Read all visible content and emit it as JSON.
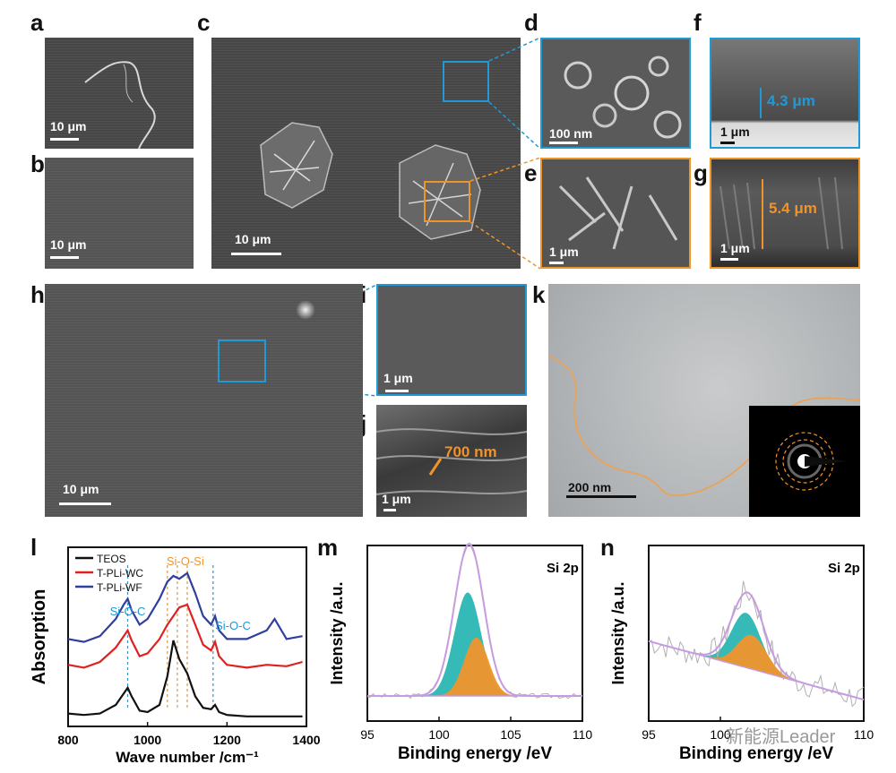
{
  "panel_labels": {
    "a": "a",
    "b": "b",
    "c": "c",
    "d": "d",
    "e": "e",
    "f": "f",
    "g": "g",
    "h": "h",
    "i": "i",
    "j": "j",
    "k": "k",
    "l": "l",
    "m": "m",
    "n": "n"
  },
  "scalebars": {
    "a": "10 μm",
    "b": "10 μm",
    "c": "10 μm",
    "d": "100 nm",
    "e": "1 μm",
    "f": "1 μm",
    "g": "1 μm",
    "h": "10 μm",
    "i": "1 μm",
    "j": "1 μm",
    "k": "200  nm"
  },
  "measurements": {
    "f": "4.3 μm",
    "g": "5.4 μm",
    "j": "700 nm"
  },
  "colors": {
    "blue": "#1f9ad6",
    "orange": "#f0942a",
    "teal": "#1fb3b0",
    "purple": "#c79be0"
  },
  "watermark": "新能源Leader",
  "chart_data": [
    {
      "panel": "l",
      "type": "line",
      "xlabel": "Wave number /cm⁻¹",
      "ylabel": "Absorption",
      "xlim": [
        800,
        1400
      ],
      "xticks": [
        800,
        1000,
        1200,
        1400
      ],
      "legend": [
        "TEOS",
        "T-PLi-WC",
        "T-PLi-WF"
      ],
      "legend_position": "top-left",
      "annotations": [
        "Si-O-Si",
        "Si-O-C",
        "Si-O-C"
      ],
      "series": [
        {
          "name": "TEOS",
          "color": "#111111",
          "x": [
            800,
            840,
            880,
            920,
            940,
            950,
            960,
            980,
            1000,
            1030,
            1050,
            1065,
            1080,
            1100,
            1120,
            1140,
            1160,
            1170,
            1180,
            1200,
            1250,
            1300,
            1350,
            1390
          ],
          "y": [
            0.04,
            0.03,
            0.04,
            0.1,
            0.18,
            0.22,
            0.16,
            0.06,
            0.05,
            0.1,
            0.3,
            0.55,
            0.42,
            0.32,
            0.16,
            0.08,
            0.07,
            0.1,
            0.05,
            0.03,
            0.02,
            0.02,
            0.02,
            0.02
          ]
        },
        {
          "name": "T-PLi-WC",
          "color": "#e02020",
          "x": [
            800,
            840,
            880,
            920,
            940,
            950,
            960,
            980,
            1000,
            1030,
            1050,
            1065,
            1080,
            1100,
            1120,
            1140,
            1160,
            1170,
            1180,
            1200,
            1250,
            1300,
            1350,
            1390
          ],
          "y": [
            0.38,
            0.36,
            0.4,
            0.5,
            0.58,
            0.62,
            0.55,
            0.44,
            0.46,
            0.56,
            0.66,
            0.72,
            0.78,
            0.8,
            0.66,
            0.52,
            0.48,
            0.54,
            0.44,
            0.38,
            0.36,
            0.38,
            0.37,
            0.4
          ]
        },
        {
          "name": "T-PLi-WF",
          "color": "#2e3f9e",
          "x": [
            800,
            840,
            880,
            920,
            940,
            950,
            960,
            980,
            1000,
            1030,
            1050,
            1065,
            1080,
            1100,
            1120,
            1140,
            1160,
            1170,
            1180,
            1200,
            1250,
            1300,
            1320,
            1350,
            1390
          ],
          "y": [
            0.56,
            0.54,
            0.58,
            0.7,
            0.8,
            0.84,
            0.76,
            0.66,
            0.7,
            0.84,
            0.96,
            1.0,
            0.98,
            1.02,
            0.88,
            0.72,
            0.66,
            0.72,
            0.62,
            0.56,
            0.56,
            0.62,
            0.7,
            0.56,
            0.58
          ]
        }
      ]
    },
    {
      "panel": "m",
      "type": "area",
      "title": "Si 2p",
      "xlabel": "Binding  energy /eV",
      "ylabel": "Intensity /a.u.",
      "xlim": [
        95,
        110
      ],
      "xticks": [
        95,
        100,
        105,
        110
      ],
      "series": [
        {
          "name": "",
          "color": "#1fb3b0",
          "center": 102.0,
          "fwhm": 2.2,
          "height": 0.85
        },
        {
          "name": "",
          "color": "#f0942a",
          "center": 102.6,
          "fwhm": 2.0,
          "height": 0.48
        },
        {
          "name": "",
          "color": "#c79be0",
          "center": 102.1,
          "fwhm": 2.4,
          "height": 1.25
        }
      ]
    },
    {
      "panel": "n",
      "type": "area",
      "title": "Si 2p",
      "xlabel": "Binding  energy /eV",
      "ylabel": "Intensity /a.u.",
      "xlim": [
        95,
        110
      ],
      "xticks": [
        95,
        100,
        110
      ],
      "series": [
        {
          "name": "",
          "color": "#1fb3b0",
          "center": 101.8,
          "fwhm": 2.4,
          "height": 0.45
        },
        {
          "name": "",
          "color": "#f0942a",
          "center": 102.2,
          "fwhm": 2.4,
          "height": 0.28
        },
        {
          "name": "",
          "color": "#c79be0",
          "center": 101.9,
          "fwhm": 2.6,
          "height": 0.62
        }
      ]
    }
  ]
}
